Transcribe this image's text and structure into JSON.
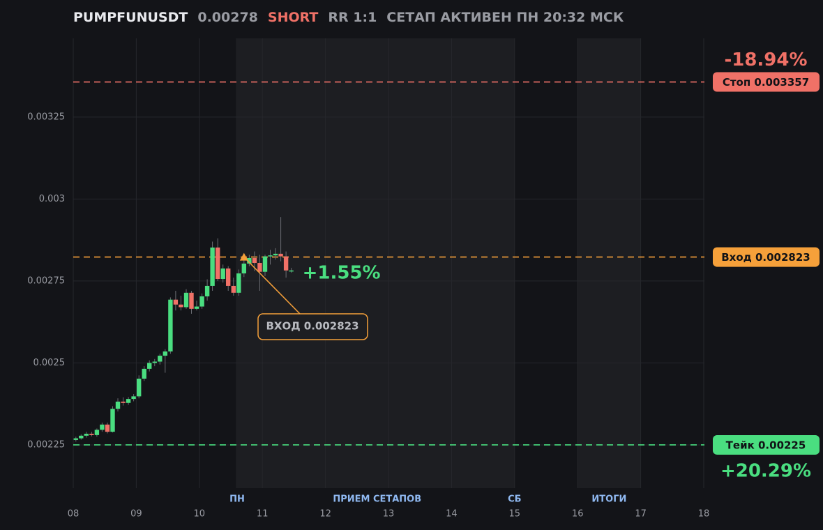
{
  "chart_data": {
    "type": "candlestick",
    "header": {
      "symbol": "PUMPFUNUSDT",
      "price": 0.00278,
      "side": "SHORT",
      "rr": "RR 1:1",
      "status": "СЕТАП АКТИВЕН ПН 20:32 МСК"
    },
    "xlim": [
      8,
      18
    ],
    "xticks": [
      {
        "value": 8,
        "label": "08"
      },
      {
        "value": 9,
        "label": "09"
      },
      10,
      11,
      12,
      13,
      14,
      15,
      16,
      17,
      18
    ],
    "ylim": [
      0.002118,
      0.00349
    ],
    "yticks": [
      0.00225,
      0.0025,
      0.00275,
      0.003,
      0.00325
    ],
    "grid": true,
    "up_color": "#4ade80",
    "down_color": "#f07167",
    "shaded": [
      [
        10.58,
        15
      ],
      [
        16,
        17
      ]
    ],
    "period_labels": [
      {
        "x": 10.6,
        "label": "ПН"
      },
      {
        "x": 12.82,
        "label": "ПРИЕМ СЕТАПОВ"
      },
      {
        "x": 15,
        "label": "СБ"
      },
      {
        "x": 16.5,
        "label": "ИТОГИ"
      }
    ],
    "x": [
      8.042,
      8.125,
      8.208,
      8.292,
      8.375,
      8.458,
      8.542,
      8.625,
      8.708,
      8.792,
      8.875,
      8.958,
      9.042,
      9.125,
      9.208,
      9.292,
      9.375,
      9.458,
      9.542,
      9.625,
      9.708,
      9.792,
      9.875,
      9.958,
      10.042,
      10.125,
      10.208,
      10.292,
      10.375,
      10.458,
      10.542,
      10.625,
      10.708,
      10.792,
      10.875,
      10.958,
      11.042,
      11.125,
      11.208,
      11.292,
      11.375,
      11.458
    ],
    "open": [
      0.002265,
      0.00227,
      0.002278,
      0.002284,
      0.00228,
      0.002296,
      0.002312,
      0.00229,
      0.00236,
      0.002382,
      0.002378,
      0.00239,
      0.002398,
      0.002452,
      0.002482,
      0.0025,
      0.002504,
      0.002522,
      0.002535,
      0.002693,
      0.002678,
      0.00267,
      0.002714,
      0.002665,
      0.002672,
      0.002703,
      0.002735,
      0.002852,
      0.002756,
      0.002788,
      0.002735,
      0.002714,
      0.002773,
      0.002803,
      0.00282,
      0.002805,
      0.002778,
      0.002825,
      0.002828,
      0.002833,
      0.002825,
      0.002782
    ],
    "high": [
      0.002275,
      0.002282,
      0.00229,
      0.00229,
      0.0023,
      0.002318,
      0.002318,
      0.002368,
      0.002392,
      0.002395,
      0.002396,
      0.002405,
      0.002462,
      0.00249,
      0.002508,
      0.002512,
      0.002528,
      0.002542,
      0.0027,
      0.00272,
      0.002705,
      0.002725,
      0.00272,
      0.00269,
      0.002712,
      0.002755,
      0.00287,
      0.00288,
      0.0028,
      0.002795,
      0.00276,
      0.002785,
      0.002815,
      0.00283,
      0.00284,
      0.00283,
      0.00283,
      0.002845,
      0.00285,
      0.002945,
      0.00284,
      0.00279
    ],
    "low": [
      0.00226,
      0.002266,
      0.002272,
      0.002276,
      0.002275,
      0.00229,
      0.002285,
      0.002288,
      0.002352,
      0.00237,
      0.002372,
      0.002383,
      0.002392,
      0.002445,
      0.002474,
      0.00249,
      0.002495,
      0.00247,
      0.002528,
      0.00266,
      0.00266,
      0.002665,
      0.00265,
      0.00266,
      0.002665,
      0.00269,
      0.00272,
      0.00275,
      0.002745,
      0.00272,
      0.002705,
      0.002705,
      0.002762,
      0.002795,
      0.00278,
      0.00272,
      0.002765,
      0.0028,
      0.002815,
      0.00281,
      0.00276,
      0.002775
    ],
    "close": [
      0.00227,
      0.002278,
      0.002284,
      0.00228,
      0.002296,
      0.002312,
      0.00229,
      0.00236,
      0.002382,
      0.002378,
      0.00239,
      0.002398,
      0.002452,
      0.002482,
      0.0025,
      0.002504,
      0.002522,
      0.002535,
      0.002693,
      0.002678,
      0.00267,
      0.002714,
      0.002665,
      0.002672,
      0.002703,
      0.002735,
      0.002852,
      0.002756,
      0.002788,
      0.002735,
      0.002714,
      0.002773,
      0.002803,
      0.00282,
      0.002805,
      0.002778,
      0.002825,
      0.002828,
      0.002833,
      0.002825,
      0.002782,
      0.002782
    ],
    "levels": [
      {
        "value": 0.003357,
        "label": "Стоп 0.003357",
        "color": "#f07167",
        "change": {
          "value": -18.94,
          "label": "-18.94%"
        }
      },
      {
        "value": 0.002823,
        "label": "Вход 0.002823",
        "color": "#f5a03a"
      },
      {
        "value": 0.00225,
        "label": "Тейк 0.00225",
        "color": "#4ade80",
        "change": {
          "value": 20.29,
          "label": "+20.29%"
        }
      }
    ],
    "current_change": {
      "value": 1.55,
      "label": "+1.55%"
    },
    "entry_marker": {
      "x": 10.708,
      "y": 0.002823,
      "label": "ВХОД 0.002823",
      "color": "#f5a03a"
    }
  }
}
